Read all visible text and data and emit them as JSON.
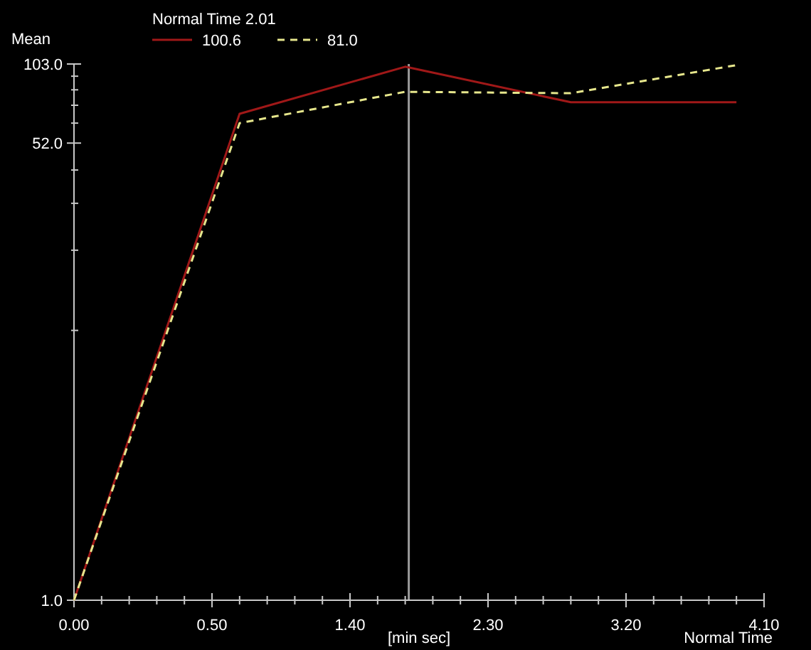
{
  "chart_data": {
    "type": "line",
    "ylabel": "Mean",
    "xlabel": "[min sec]",
    "legend_title": "Normal Time 2.01",
    "annotations": [
      "Normal Time"
    ],
    "categories": [
      "0.00",
      null,
      null,
      null,
      null,
      "0.50",
      null,
      null,
      null,
      null,
      "1.40",
      null,
      null,
      null,
      null,
      "2.30",
      null,
      null,
      null,
      null,
      "3.20",
      null,
      null,
      null,
      null,
      "4.10"
    ],
    "series": [
      {
        "name": "100.6",
        "color": "#a01818",
        "values": [
          1,
          null,
          null,
          null,
          null,
          null,
          67,
          null,
          null,
          null,
          null,
          null,
          100.6,
          null,
          null,
          null,
          null,
          null,
          74,
          null,
          null,
          null,
          null,
          null,
          74,
          null
        ],
        "line_style": "solid"
      },
      {
        "name": "81.0",
        "color": "#e6e68c",
        "values": [
          1,
          null,
          null,
          null,
          null,
          null,
          61.8,
          null,
          null,
          null,
          null,
          null,
          81,
          null,
          null,
          null,
          null,
          null,
          80,
          null,
          null,
          null,
          null,
          null,
          102,
          null
        ],
        "line_style": "dashed"
      }
    ],
    "log": "y",
    "ylim": [
      1,
      103
    ],
    "yticks": [
      {
        "value": 1,
        "label": "1.0"
      },
      {
        "value": 10.3,
        "label": null
      },
      {
        "value": 20.6,
        "label": null
      },
      {
        "value": 30.9,
        "label": null
      },
      {
        "value": 41.2,
        "label": null
      },
      {
        "value": 52,
        "label": "52.0"
      },
      {
        "value": 61.8,
        "label": null
      },
      {
        "value": 72.1,
        "label": null
      },
      {
        "value": 82.4,
        "label": null
      },
      {
        "value": 92.7,
        "label": null
      },
      {
        "value": 103,
        "label": "103.0"
      }
    ],
    "grid": false,
    "legend": "top",
    "marker": "none"
  }
}
